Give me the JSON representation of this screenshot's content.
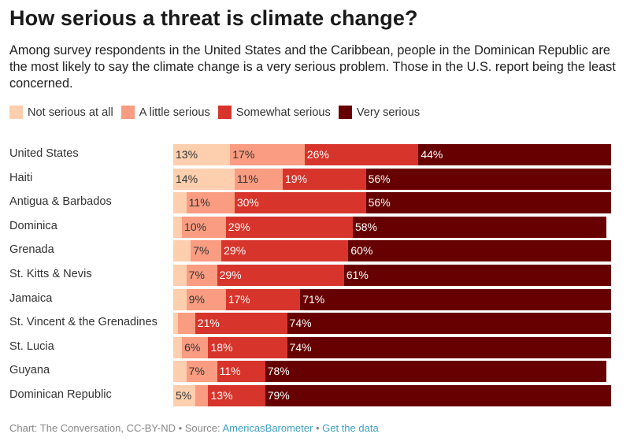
{
  "title": "How serious a threat is climate change?",
  "subtitle": "Among survey respondents in the United States and the Caribbean, people in the Dominican Republic are the most likely to say the climate change is a very serious problem. Those in the U.S. report being the least concerned.",
  "footer": {
    "credit": "Chart: The Conversation, CC-BY-ND",
    "separator": " • ",
    "source_prefix": "Source: ",
    "source_link": "AmericasBarometer",
    "get_data": "Get the data"
  },
  "colors": {
    "not_serious": "#fdcfaf",
    "little_serious": "#f99c81",
    "somewhat_serious": "#d7352c",
    "very_serious": "#670000"
  },
  "chart_data": {
    "type": "bar",
    "orientation": "horizontal",
    "stacked": true,
    "title": "How serious a threat is climate change?",
    "xlabel": "",
    "ylabel": "",
    "xlim": [
      0,
      100
    ],
    "grid": false,
    "legend_position": "top-left",
    "categories": [
      "United States",
      "Haiti",
      "Antigua & Barbados",
      "Dominica",
      "Grenada",
      "St. Kitts & Nevis",
      "Jamaica",
      "St. Vincent & the Grenadines",
      "St. Lucia",
      "Guyana",
      "Dominican Republic"
    ],
    "series": [
      {
        "name": "Not serious at all",
        "color": "#fdcfaf",
        "label_color": "#333333",
        "values": [
          13,
          14,
          3,
          2,
          4,
          3,
          3,
          1,
          2,
          3,
          5
        ],
        "labels": [
          "13%",
          "14%",
          "",
          "",
          "",
          "",
          "",
          "",
          "",
          "",
          "5%"
        ]
      },
      {
        "name": "A little serious",
        "color": "#f99c81",
        "label_color": "#333333",
        "values": [
          17,
          11,
          11,
          10,
          7,
          7,
          9,
          4,
          6,
          7,
          3
        ],
        "labels": [
          "17%",
          "11%",
          "11%",
          "10%",
          "7%",
          "7%",
          "9%",
          "",
          "6%",
          "7%",
          ""
        ]
      },
      {
        "name": "Somewhat serious",
        "color": "#d7352c",
        "label_color": "#ffffff",
        "values": [
          26,
          19,
          30,
          29,
          29,
          29,
          17,
          21,
          18,
          11,
          13
        ],
        "labels": [
          "26%",
          "19%",
          "30%",
          "29%",
          "29%",
          "29%",
          "17%",
          "21%",
          "18%",
          "11%",
          "13%"
        ]
      },
      {
        "name": "Very serious",
        "color": "#670000",
        "label_color": "#ffffff",
        "values": [
          44,
          56,
          56,
          58,
          60,
          61,
          71,
          74,
          74,
          78,
          79
        ],
        "labels": [
          "44%",
          "56%",
          "56%",
          "58%",
          "60%",
          "61%",
          "71%",
          "74%",
          "74%",
          "78%",
          "79%"
        ]
      }
    ]
  }
}
